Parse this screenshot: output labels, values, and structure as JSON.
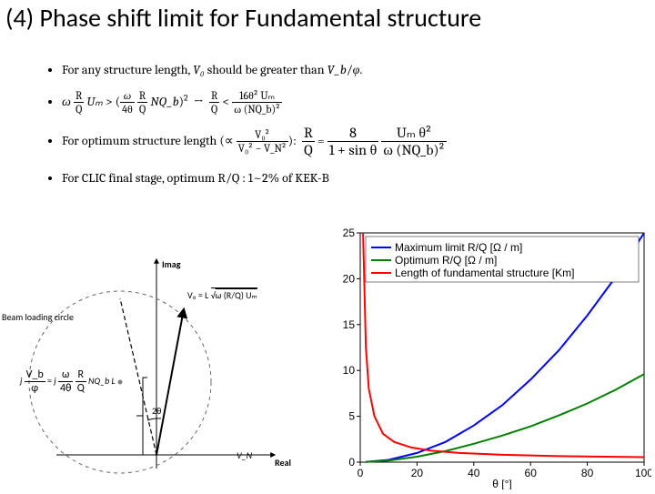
{
  "title": "(4) Phase shift limit for Fundamental structure",
  "bullets": {
    "b1_pre": "For any structure length, ",
    "b1_mid": " should be greater than ",
    "b1_v0": "V₀",
    "b1_vb": "V_b",
    "b1_phi": "φ",
    "b2_left_omega": "ω",
    "b2_left_R": "R",
    "b2_left_Q": "Q",
    "b2_left_Um": "Uₘ",
    "b2_right_omega": "ω",
    "b2_right_R": "R",
    "b2_right_Q": "Q",
    "b2_right_NQ": "NQ_b",
    "b2_right_4theta": "4θ",
    "b2_rr_R": "R",
    "b2_rr_Q": "Q",
    "b2_rr_num": "16θ² Uₘ",
    "b2_rr_den": "ω (NQ_b)²",
    "b3_pre": "For optimum structure length ",
    "b3_prop_V0sq": "V₀²",
    "b3_prop_den": "V₀² − V_N²",
    "b3_R": "R",
    "b3_Q": "Q",
    "b3_num1": "8",
    "b3_den1": "1 + sin θ",
    "b3_num2": "Uₘ θ²",
    "b3_den2": "ω (NQ_b)²",
    "b4": "For CLIC final stage, optimum R/Q : 1~2% of KEK-B"
  },
  "phasor": {
    "imag_label": "Imag",
    "real_label": "Real",
    "beam_loading_label": "Beam loading circle",
    "angle_label": "2θ",
    "vn_label": "V_N",
    "vb_label_num": "V_b",
    "vb_label_phi": "φ",
    "vb_expr_omega": "ω",
    "vb_expr_R": "R",
    "vb_expr_4theta": "4θ",
    "vb_expr_Q": "Q",
    "vb_expr_NQL": "NQ_b L",
    "v0_eq": "V₀ = L",
    "v0_root": "ω (R/Q) Uₘ",
    "colors": {
      "axis": "#000000",
      "dashed": "#808080",
      "node_fill": "#808080"
    }
  },
  "chart": {
    "type": "line",
    "x_axis": {
      "label": "θ [°]",
      "min": 0,
      "max": 100,
      "ticks": [
        0,
        20,
        40,
        60,
        80,
        100
      ]
    },
    "y_axis": {
      "min": 0,
      "max": 25,
      "ticks": [
        0,
        5,
        10,
        15,
        20,
        25
      ]
    },
    "background_color": "#ffffff",
    "axis_color": "#000000",
    "line_width": 2,
    "legend": {
      "position": "top-right-inside",
      "items": [
        {
          "label": "Maximum limit R/Q [Ω / m]",
          "color": "#0000ff"
        },
        {
          "label": "Optimum R/Q [Ω / m]",
          "color": "#007f00"
        },
        {
          "label": "Length of fundamental structure [Km]",
          "color": "#ff0000"
        }
      ]
    },
    "series": [
      {
        "name": "max_limit",
        "color": "#0000ff",
        "points": [
          [
            2,
            0.02
          ],
          [
            10,
            0.25
          ],
          [
            20,
            1.0
          ],
          [
            30,
            2.2
          ],
          [
            40,
            4.0
          ],
          [
            50,
            6.2
          ],
          [
            60,
            9.0
          ],
          [
            70,
            12.2
          ],
          [
            80,
            16.0
          ],
          [
            90,
            20.2
          ],
          [
            100,
            25.0
          ]
        ]
      },
      {
        "name": "optimum",
        "color": "#007f00",
        "points": [
          [
            2,
            0.02
          ],
          [
            10,
            0.18
          ],
          [
            20,
            0.6
          ],
          [
            30,
            1.2
          ],
          [
            40,
            2.0
          ],
          [
            50,
            2.9
          ],
          [
            60,
            3.9
          ],
          [
            70,
            5.1
          ],
          [
            80,
            6.4
          ],
          [
            90,
            7.9
          ],
          [
            100,
            9.6
          ]
        ]
      },
      {
        "name": "length",
        "color": "#ff0000",
        "points": [
          [
            1,
            25.0
          ],
          [
            2,
            12.5
          ],
          [
            3,
            8.0
          ],
          [
            5,
            5.0
          ],
          [
            8,
            3.1
          ],
          [
            12,
            2.2
          ],
          [
            18,
            1.6
          ],
          [
            25,
            1.25
          ],
          [
            35,
            1.0
          ],
          [
            50,
            0.8
          ],
          [
            70,
            0.65
          ],
          [
            100,
            0.55
          ]
        ]
      }
    ]
  }
}
